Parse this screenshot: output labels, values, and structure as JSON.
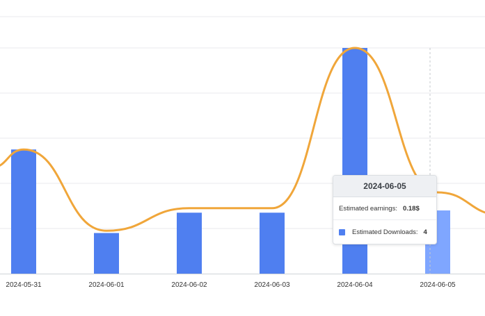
{
  "chart_data": {
    "type": "bar",
    "categories": [
      "2024-05-31",
      "2024-06-01",
      "2024-06-02",
      "2024-06-03",
      "2024-06-04",
      "2024-06-05"
    ],
    "series": [
      {
        "name": "Estimated Downloads",
        "type": "bar",
        "values": [
          5.5,
          1.8,
          2.7,
          2.7,
          10,
          2.8
        ],
        "color": "#4f7ff0",
        "highlight_color": "#7fa6ff"
      },
      {
        "name": "Estimated earnings",
        "type": "line",
        "values": [
          5.5,
          1.9,
          2.9,
          2.9,
          10,
          3.6
        ],
        "color": "#f0a63a"
      }
    ],
    "ylim": [
      0,
      10
    ],
    "grid": true,
    "highlighted_category": "2024-06-05"
  },
  "tooltip": {
    "title": "2024-06-05",
    "earnings_label": "Estimated earnings:",
    "earnings_value": "0.18$",
    "downloads_label": "Estimated Downloads:",
    "downloads_value": "4",
    "swatch_color": "#4f7ff0"
  }
}
